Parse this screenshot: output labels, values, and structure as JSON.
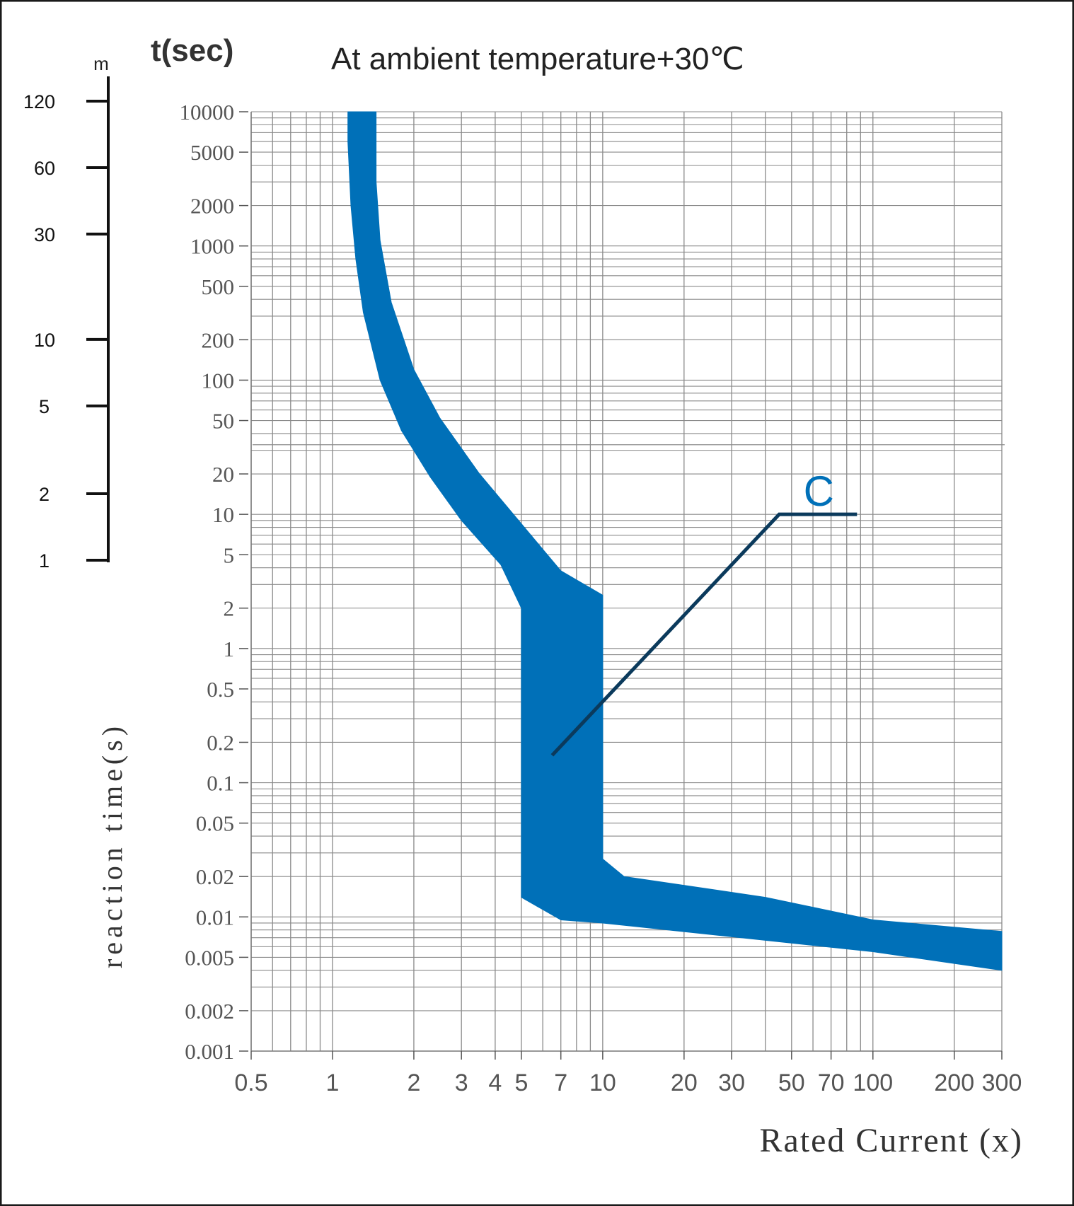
{
  "chart_data": {
    "type": "area",
    "title": "At ambient temperature+30℃",
    "ylabel_top": "t(sec)",
    "ylabel": "reaction time(s)",
    "xlabel": "Rated Current (x)",
    "x_scale": "log",
    "y_scale": "log",
    "xlim": [
      0.5,
      300
    ],
    "ylim": [
      0.001,
      10000
    ],
    "grid": true,
    "x_ticks": [
      "0.5",
      "1",
      "2",
      "3",
      "4",
      "5",
      "7",
      "10",
      "20",
      "30",
      "50",
      "70",
      "100",
      "200",
      "300"
    ],
    "x_tick_values": [
      0.5,
      1,
      2,
      3,
      4,
      5,
      7,
      10,
      20,
      30,
      50,
      70,
      100,
      200,
      300
    ],
    "y_ticks": [
      "10000",
      "5000",
      "2000",
      "1000",
      "500",
      "200",
      "100",
      "50",
      "20",
      "10",
      "5",
      "2",
      "1",
      "0.5",
      "0.2",
      "0.1",
      "0.05",
      "0.02",
      "0.01",
      "0.005",
      "0.002",
      "0.001"
    ],
    "y_tick_values": [
      10000,
      5000,
      2000,
      1000,
      500,
      200,
      100,
      50,
      20,
      10,
      5,
      2,
      1,
      0.5,
      0.2,
      0.1,
      0.05,
      0.02,
      0.01,
      0.005,
      0.002,
      0.001
    ],
    "minutes_axis": {
      "unit": "m",
      "ticks": [
        "120",
        "60",
        "30",
        "10",
        "5",
        "2",
        "1"
      ],
      "values_min": [
        120,
        60,
        30,
        10,
        5,
        2,
        1
      ]
    },
    "series": [
      {
        "name": "C",
        "color": "#0070b8",
        "upper_boundary": [
          [
            1.14,
            10000
          ],
          [
            1.14,
            6000
          ],
          [
            1.17,
            2000
          ],
          [
            1.22,
            800
          ],
          [
            1.3,
            320
          ],
          [
            1.5,
            100
          ],
          [
            1.8,
            42
          ],
          [
            2.3,
            19
          ],
          [
            3.0,
            9
          ],
          [
            4.2,
            4.2
          ],
          [
            5.0,
            2.0
          ]
        ],
        "lower_boundary": [
          [
            1.45,
            10000
          ],
          [
            1.45,
            3000
          ],
          [
            1.5,
            1100
          ],
          [
            1.65,
            380
          ],
          [
            2.0,
            120
          ],
          [
            2.5,
            52
          ],
          [
            3.5,
            20
          ],
          [
            5.0,
            8.5
          ],
          [
            7.0,
            3.8
          ],
          [
            10.0,
            2.5
          ]
        ],
        "instantaneous_band": {
          "x_from": 5,
          "x_to": 10,
          "upper_s": [
            2.0,
            2.5
          ],
          "lower_s": 0.014
        },
        "tail_upper": [
          [
            10.0,
            0.027
          ],
          [
            12,
            0.02
          ],
          [
            40,
            0.014
          ],
          [
            100,
            0.0095
          ],
          [
            300,
            0.0078
          ]
        ],
        "tail_lower": [
          [
            5.0,
            0.014
          ],
          [
            7.0,
            0.0095
          ],
          [
            10.0,
            0.009
          ],
          [
            100,
            0.0055
          ],
          [
            300,
            0.004
          ]
        ]
      }
    ],
    "annotations": [
      {
        "text": "C",
        "color": "#0070b8",
        "leader_line_color": "#0b3a5c",
        "points_to": [
          6.5,
          0.16
        ],
        "label_at": [
          45,
          10
        ]
      }
    ]
  }
}
